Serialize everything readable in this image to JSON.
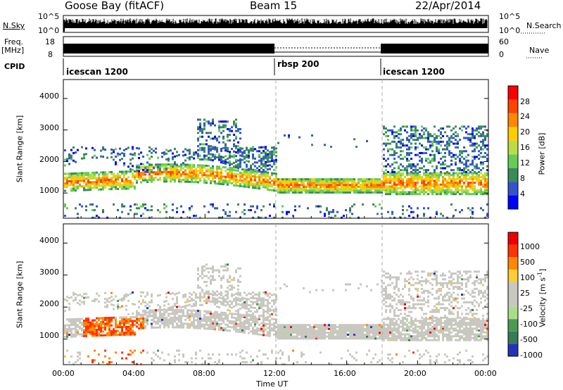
{
  "header": {
    "station": "Goose Bay (fitACF)",
    "beam": "Beam 15",
    "date": "22/Apr/2014"
  },
  "nsky_panel": {
    "left_label": "N.Sky",
    "left_ticks": [
      "10^5",
      "10^0"
    ],
    "right_ticks": [
      "10^5",
      "10^0"
    ],
    "right_label": "N.Search"
  },
  "freq_panel": {
    "left_label_1": "Freq.",
    "left_label_2": "[MHz]",
    "left_ticks": [
      "18",
      "8"
    ],
    "right_ticks": [
      "60",
      "0"
    ],
    "right_label": "Nave"
  },
  "cpid": {
    "label": "CPID",
    "segments": [
      {
        "name": "icescan 1200",
        "start_hour": 0
      },
      {
        "name": "rbsp 200",
        "start_hour": 12
      },
      {
        "name": "icescan 1200",
        "start_hour": 18
      }
    ]
  },
  "chart_data": [
    {
      "type": "heatmap",
      "name": "power",
      "ylabel": "Slant Range [km]",
      "yticks": [
        "1000",
        "2000",
        "3000",
        "4000"
      ],
      "ylim": [
        200,
        4600
      ],
      "xlim": [
        0,
        24
      ],
      "colorbar_label": "Power [dB]",
      "colorbar_ticks": [
        "28",
        "24",
        "20",
        "16",
        "12",
        "8",
        "4"
      ],
      "colors": [
        "#0000ff",
        "#3355cc",
        "#3a8a5a",
        "#66cc55",
        "#bbdd44",
        "#ffcc00",
        "#ff8800",
        "#ff4400",
        "#ff0000"
      ]
    },
    {
      "type": "heatmap",
      "name": "velocity",
      "ylabel": "Slant Range [km]",
      "yticks": [
        "1000",
        "2000",
        "3000",
        "4000"
      ],
      "ylim": [
        200,
        4600
      ],
      "xlim": [
        0,
        24
      ],
      "colorbar_label": "Velocity [m s",
      "colorbar_label_sup": "-1",
      "colorbar_label_end": "]",
      "colorbar_ticks": [
        "1000",
        "500",
        "100",
        "25",
        "-25",
        "-100",
        "-500",
        "-1000"
      ],
      "colors": [
        "#2233bb",
        "#3a7a55",
        "#4a9a55",
        "#aadd88",
        "#c8c8c0",
        "#c8c8c0",
        "#ffcc33",
        "#ff8800",
        "#ff3300",
        "#ee0000"
      ]
    }
  ],
  "xaxis": {
    "ticks": [
      "00:00",
      "04:00",
      "08:00",
      "12:00",
      "16:00",
      "20:00",
      "00:00"
    ],
    "label": "Time UT"
  }
}
